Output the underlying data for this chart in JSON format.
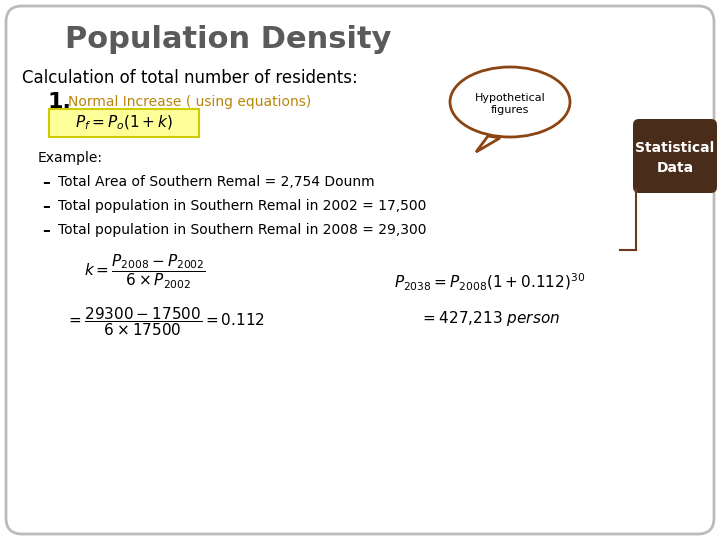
{
  "title": "Population Density",
  "title_color": "#5a5a5a",
  "title_fontsize": 22,
  "bg_color": "#ffffff",
  "border_color": "#bbbbbb",
  "subtitle": "Calculation of total number of residents:",
  "subtitle_fontsize": 12,
  "item1_label": "1.",
  "item1_text": "Normal Increase ( using equations)",
  "item1_color": "#b8860b",
  "formula_box_color": "#ffff99",
  "formula_border_color": "#cccc00",
  "example_label": "Example:",
  "bullets": [
    "Total Area of Southern Remal = 2,754 Dounm",
    "Total population in Southern Remal in 2002 = 17,500",
    "Total population in Southern Remal in 2008 = 29,300"
  ],
  "speech_bubble_color": "#ffffff",
  "speech_bubble_border": "#8B4513",
  "speech_bubble_text1": "Hypothetical",
  "speech_bubble_text2": "figures",
  "stat_box_color": "#4a2c1a",
  "stat_box_text1": "Statistical",
  "stat_box_text2": "Data"
}
